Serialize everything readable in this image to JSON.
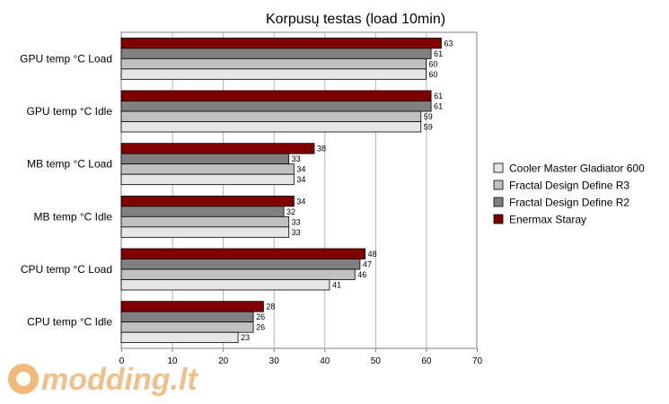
{
  "chart_data": {
    "type": "bar",
    "orientation": "horizontal",
    "title": "Korpusų testas (load 10min)",
    "xlabel": "",
    "ylabel": "",
    "xlim": [
      0,
      70
    ],
    "x_ticks": [
      0,
      10,
      20,
      30,
      40,
      50,
      60,
      70
    ],
    "grid": true,
    "legend_position": "right",
    "categories": [
      "GPU temp °C Load",
      "GPU temp °C Idle",
      "MB temp °C Load",
      "MB temp °C Idle",
      "CPU temp °C Load",
      "CPU temp °C Idle"
    ],
    "series": [
      {
        "name": "Enermax Staray",
        "color": "#800000",
        "values": [
          63,
          61,
          38,
          34,
          48,
          28
        ]
      },
      {
        "name": "Fractal Design Define R2",
        "color": "#808080",
        "values": [
          61,
          61,
          33,
          32,
          47,
          26
        ]
      },
      {
        "name": "Fractal Design Define R3",
        "color": "#c0c0c0",
        "values": [
          60,
          59,
          34,
          33,
          46,
          26
        ]
      },
      {
        "name": "Cooler Master Gladiator 600",
        "color": "#e6e6e6",
        "values": [
          60,
          59,
          34,
          33,
          41,
          23
        ]
      }
    ]
  },
  "watermark": {
    "text": "modding.lt",
    "color": "#f0c08a"
  }
}
